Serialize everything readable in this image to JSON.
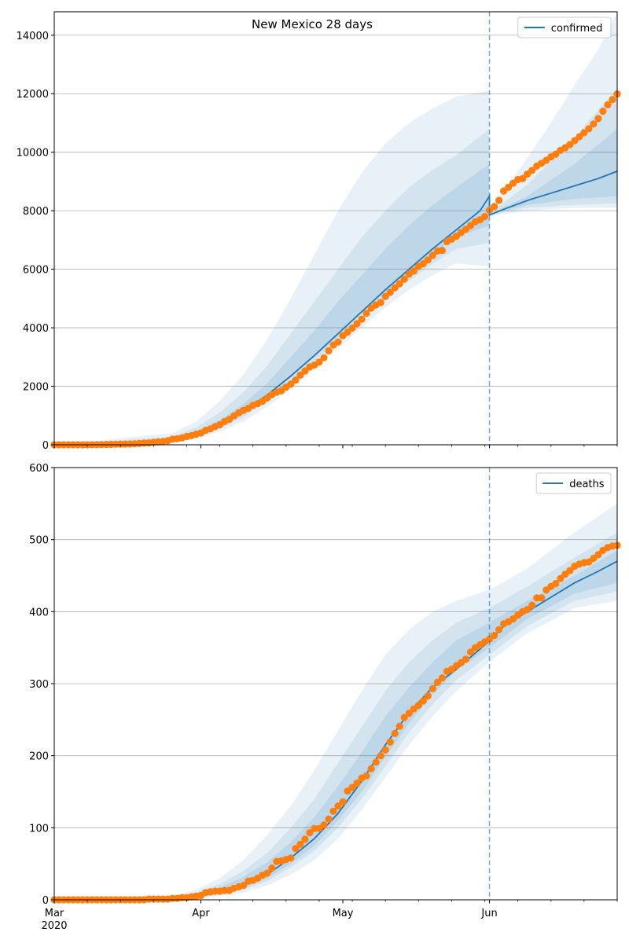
{
  "chart_data": [
    {
      "type": "line",
      "title": "New Mexico 28 days",
      "series_name": "confirmed",
      "ylim": [
        0,
        14800
      ],
      "yticks": [
        0,
        2000,
        4000,
        6000,
        8000,
        10000,
        12000,
        14000
      ],
      "x_range_days": [
        0,
        119
      ],
      "xticks": [
        {
          "day": 0,
          "label": "Mar"
        },
        {
          "day": 31,
          "label": "Apr"
        },
        {
          "day": 61,
          "label": "May"
        },
        {
          "day": 92,
          "label": "Jun"
        }
      ],
      "year_label": "2020",
      "forecast_start_day": 92,
      "grid": "horizontal",
      "legend_position": "top-right",
      "model_line": [
        [
          0,
          0
        ],
        [
          20,
          40
        ],
        [
          25,
          150
        ],
        [
          30,
          330
        ],
        [
          35,
          700
        ],
        [
          40,
          1150
        ],
        [
          45,
          1700
        ],
        [
          50,
          2350
        ],
        [
          55,
          3050
        ],
        [
          60,
          3800
        ],
        [
          65,
          4550
        ],
        [
          70,
          5300
        ],
        [
          75,
          6000
        ],
        [
          80,
          6700
        ],
        [
          85,
          7350
        ],
        [
          90,
          8000
        ],
        [
          92,
          8500
        ],
        [
          92,
          7850
        ],
        [
          95,
          8050
        ],
        [
          100,
          8350
        ],
        [
          105,
          8600
        ],
        [
          110,
          8850
        ],
        [
          115,
          9100
        ],
        [
          119,
          9350
        ]
      ],
      "band_upper_outer": [
        [
          0,
          0
        ],
        [
          25,
          400
        ],
        [
          30,
          800
        ],
        [
          35,
          1500
        ],
        [
          40,
          2400
        ],
        [
          45,
          3600
        ],
        [
          50,
          5000
        ],
        [
          55,
          6500
        ],
        [
          60,
          8000
        ],
        [
          65,
          9300
        ],
        [
          70,
          10300
        ],
        [
          75,
          11000
        ],
        [
          80,
          11500
        ],
        [
          85,
          11900
        ],
        [
          92,
          12100
        ],
        [
          92,
          7900
        ],
        [
          95,
          8700
        ],
        [
          100,
          9800
        ],
        [
          105,
          11000
        ],
        [
          110,
          12300
        ],
        [
          115,
          13500
        ],
        [
          119,
          14800
        ]
      ],
      "band_lower_outer": [
        [
          0,
          0
        ],
        [
          25,
          80
        ],
        [
          30,
          200
        ],
        [
          35,
          450
        ],
        [
          40,
          800
        ],
        [
          45,
          1300
        ],
        [
          50,
          1900
        ],
        [
          55,
          2600
        ],
        [
          60,
          3300
        ],
        [
          65,
          4000
        ],
        [
          70,
          4700
        ],
        [
          75,
          5300
        ],
        [
          80,
          5800
        ],
        [
          85,
          6200
        ],
        [
          92,
          6100
        ],
        [
          92,
          7800
        ],
        [
          100,
          8000
        ],
        [
          110,
          8100
        ],
        [
          119,
          8100
        ]
      ],
      "band_upper_mid": [
        [
          0,
          0
        ],
        [
          25,
          280
        ],
        [
          30,
          600
        ],
        [
          35,
          1100
        ],
        [
          40,
          1800
        ],
        [
          45,
          2700
        ],
        [
          50,
          3800
        ],
        [
          55,
          4900
        ],
        [
          60,
          6000
        ],
        [
          65,
          7100
        ],
        [
          70,
          8000
        ],
        [
          75,
          8800
        ],
        [
          80,
          9400
        ],
        [
          85,
          9900
        ],
        [
          92,
          10800
        ],
        [
          92,
          7900
        ],
        [
          100,
          8900
        ],
        [
          110,
          10500
        ],
        [
          119,
          12200
        ]
      ],
      "band_lower_mid": [
        [
          0,
          0
        ],
        [
          25,
          110
        ],
        [
          30,
          270
        ],
        [
          35,
          560
        ],
        [
          40,
          950
        ],
        [
          45,
          1500
        ],
        [
          50,
          2150
        ],
        [
          55,
          2850
        ],
        [
          60,
          3600
        ],
        [
          65,
          4300
        ],
        [
          70,
          5000
        ],
        [
          75,
          5600
        ],
        [
          80,
          6200
        ],
        [
          85,
          6700
        ],
        [
          92,
          6900
        ],
        [
          92,
          7850
        ],
        [
          100,
          8100
        ],
        [
          110,
          8200
        ],
        [
          119,
          8250
        ]
      ],
      "band_upper_inner": [
        [
          0,
          0
        ],
        [
          25,
          200
        ],
        [
          30,
          440
        ],
        [
          35,
          850
        ],
        [
          40,
          1400
        ],
        [
          45,
          2100
        ],
        [
          50,
          3000
        ],
        [
          55,
          3900
        ],
        [
          60,
          4900
        ],
        [
          65,
          5800
        ],
        [
          70,
          6700
        ],
        [
          75,
          7500
        ],
        [
          80,
          8200
        ],
        [
          85,
          8800
        ],
        [
          92,
          9600
        ],
        [
          92,
          7880
        ],
        [
          100,
          8500
        ],
        [
          110,
          9600
        ],
        [
          119,
          10800
        ]
      ],
      "band_lower_inner": [
        [
          0,
          0
        ],
        [
          25,
          130
        ],
        [
          30,
          300
        ],
        [
          35,
          620
        ],
        [
          40,
          1050
        ],
        [
          45,
          1600
        ],
        [
          50,
          2300
        ],
        [
          55,
          3000
        ],
        [
          60,
          3700
        ],
        [
          65,
          4500
        ],
        [
          70,
          5200
        ],
        [
          75,
          5900
        ],
        [
          80,
          6500
        ],
        [
          85,
          7100
        ],
        [
          92,
          7500
        ],
        [
          92,
          7860
        ],
        [
          100,
          8200
        ],
        [
          110,
          8400
        ],
        [
          119,
          8500
        ]
      ],
      "observed": [
        0,
        0,
        0,
        0,
        0,
        0,
        0,
        0,
        2,
        3,
        5,
        10,
        13,
        17,
        21,
        23,
        28,
        35,
        43,
        57,
        65,
        83,
        100,
        112,
        136,
        191,
        208,
        237,
        281,
        315,
        363,
        403,
        495,
        543,
        624,
        686,
        794,
        865,
        989,
        1091,
        1174,
        1245,
        1345,
        1407,
        1484,
        1597,
        1711,
        1798,
        1845,
        1971,
        2072,
        2210,
        2379,
        2521,
        2660,
        2726,
        2823,
        2974,
        3213,
        3411,
        3513,
        3732,
        3850,
        3990,
        4138,
        4291,
        4493,
        4673,
        4778,
        4863,
        5069,
        5212,
        5364,
        5503,
        5662,
        5838,
        5938,
        6096,
        6192,
        6317,
        6472,
        6625,
        6643,
        6943,
        7026,
        7130,
        7252,
        7364,
        7493,
        7623,
        7689,
        7800,
        8014,
        8140,
        8353,
        8672,
        8800,
        8940,
        9065,
        9100,
        9250,
        9380,
        9526,
        9621,
        9723,
        9845,
        9935,
        10065,
        10153,
        10260,
        10395,
        10530,
        10665,
        10800,
        10965,
        11150,
        11400,
        11620,
        11800,
        11990
      ]
    },
    {
      "type": "line",
      "series_name": "deaths",
      "ylim": [
        0,
        600
      ],
      "yticks": [
        0,
        100,
        200,
        300,
        400,
        500,
        600
      ],
      "x_range_days": [
        0,
        119
      ],
      "xticks": [
        {
          "day": 0,
          "label": "Mar"
        },
        {
          "day": 31,
          "label": "Apr"
        },
        {
          "day": 61,
          "label": "May"
        },
        {
          "day": 92,
          "label": "Jun"
        }
      ],
      "year_label": "2020",
      "forecast_start_day": 92,
      "grid": "horizontal",
      "legend_position": "top-right",
      "model_line": [
        [
          0,
          0
        ],
        [
          20,
          1
        ],
        [
          25,
          2
        ],
        [
          30,
          5
        ],
        [
          35,
          10
        ],
        [
          40,
          20
        ],
        [
          45,
          35
        ],
        [
          50,
          58
        ],
        [
          55,
          85
        ],
        [
          60,
          120
        ],
        [
          65,
          165
        ],
        [
          70,
          215
        ],
        [
          75,
          260
        ],
        [
          80,
          295
        ],
        [
          85,
          320
        ],
        [
          90,
          348
        ],
        [
          92,
          360
        ],
        [
          95,
          380
        ],
        [
          100,
          400
        ],
        [
          105,
          420
        ],
        [
          110,
          440
        ],
        [
          115,
          456
        ],
        [
          119,
          470
        ]
      ],
      "band_upper_outer": [
        [
          0,
          0
        ],
        [
          25,
          6
        ],
        [
          30,
          14
        ],
        [
          35,
          30
        ],
        [
          40,
          55
        ],
        [
          45,
          90
        ],
        [
          50,
          130
        ],
        [
          55,
          180
        ],
        [
          60,
          235
        ],
        [
          65,
          290
        ],
        [
          70,
          340
        ],
        [
          75,
          375
        ],
        [
          80,
          400
        ],
        [
          85,
          415
        ],
        [
          92,
          430
        ],
        [
          100,
          460
        ],
        [
          110,
          510
        ],
        [
          119,
          550
        ]
      ],
      "band_lower_outer": [
        [
          0,
          0
        ],
        [
          25,
          1
        ],
        [
          30,
          2
        ],
        [
          35,
          5
        ],
        [
          40,
          10
        ],
        [
          45,
          20
        ],
        [
          50,
          35
        ],
        [
          55,
          55
        ],
        [
          60,
          85
        ],
        [
          65,
          125
        ],
        [
          70,
          170
        ],
        [
          75,
          215
        ],
        [
          80,
          255
        ],
        [
          85,
          290
        ],
        [
          92,
          330
        ],
        [
          100,
          370
        ],
        [
          110,
          405
        ],
        [
          119,
          415
        ]
      ],
      "band_upper_mid": [
        [
          0,
          0
        ],
        [
          25,
          4
        ],
        [
          30,
          10
        ],
        [
          35,
          22
        ],
        [
          40,
          40
        ],
        [
          45,
          65
        ],
        [
          50,
          100
        ],
        [
          55,
          140
        ],
        [
          60,
          190
        ],
        [
          65,
          240
        ],
        [
          70,
          290
        ],
        [
          75,
          330
        ],
        [
          80,
          360
        ],
        [
          85,
          385
        ],
        [
          92,
          405
        ],
        [
          100,
          435
        ],
        [
          110,
          475
        ],
        [
          119,
          510
        ]
      ],
      "band_lower_mid": [
        [
          0,
          0
        ],
        [
          25,
          1
        ],
        [
          30,
          3
        ],
        [
          35,
          7
        ],
        [
          40,
          14
        ],
        [
          45,
          26
        ],
        [
          50,
          45
        ],
        [
          55,
          68
        ],
        [
          60,
          100
        ],
        [
          65,
          140
        ],
        [
          70,
          185
        ],
        [
          75,
          232
        ],
        [
          80,
          272
        ],
        [
          85,
          305
        ],
        [
          92,
          340
        ],
        [
          100,
          380
        ],
        [
          110,
          415
        ],
        [
          119,
          428
        ]
      ],
      "band_upper_inner": [
        [
          0,
          0
        ],
        [
          25,
          3
        ],
        [
          30,
          8
        ],
        [
          35,
          17
        ],
        [
          40,
          32
        ],
        [
          45,
          52
        ],
        [
          50,
          80
        ],
        [
          55,
          115
        ],
        [
          60,
          158
        ],
        [
          65,
          205
        ],
        [
          70,
          255
        ],
        [
          75,
          295
        ],
        [
          80,
          330
        ],
        [
          85,
          360
        ],
        [
          92,
          385
        ],
        [
          100,
          415
        ],
        [
          110,
          450
        ],
        [
          119,
          485
        ]
      ],
      "band_lower_inner": [
        [
          0,
          0
        ],
        [
          25,
          1
        ],
        [
          30,
          4
        ],
        [
          35,
          8
        ],
        [
          40,
          16
        ],
        [
          45,
          30
        ],
        [
          50,
          50
        ],
        [
          55,
          75
        ],
        [
          60,
          110
        ],
        [
          65,
          150
        ],
        [
          70,
          198
        ],
        [
          75,
          245
        ],
        [
          80,
          285
        ],
        [
          85,
          318
        ],
        [
          92,
          350
        ],
        [
          100,
          390
        ],
        [
          110,
          425
        ],
        [
          119,
          440
        ]
      ],
      "observed": [
        0,
        0,
        0,
        0,
        0,
        0,
        0,
        0,
        0,
        0,
        0,
        0,
        0,
        0,
        0,
        0,
        0,
        0,
        0,
        0,
        1,
        1,
        1,
        1,
        1,
        2,
        2,
        3,
        3,
        4,
        5,
        6,
        10,
        11,
        12,
        12,
        13,
        13,
        16,
        18,
        20,
        26,
        27,
        30,
        34,
        37,
        44,
        53,
        54,
        56,
        58,
        71,
        77,
        84,
        93,
        99,
        99,
        104,
        112,
        123,
        130,
        136,
        151,
        156,
        162,
        169,
        172,
        182,
        191,
        200,
        208,
        219,
        231,
        241,
        253,
        259,
        265,
        270,
        276,
        283,
        293,
        302,
        308,
        317,
        320,
        325,
        329,
        334,
        344,
        350,
        354,
        358,
        362,
        367,
        375,
        383,
        386,
        390,
        395,
        400,
        403,
        409,
        419,
        419,
        430,
        435,
        439,
        446,
        452,
        457,
        463,
        466,
        468,
        469,
        474,
        479,
        485,
        489,
        491,
        492
      ]
    }
  ]
}
